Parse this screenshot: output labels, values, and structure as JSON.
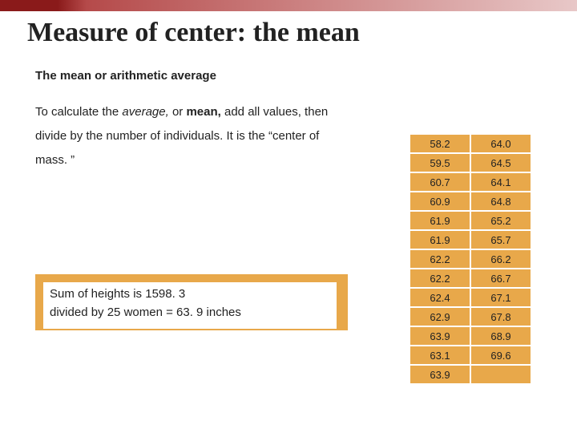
{
  "title_pre": "Measure of center: the ",
  "title_bold": "mean",
  "subtitle": "The mean or arithmetic average",
  "body_part1": "To calculate the ",
  "body_ital": "average,",
  "body_part2": " or ",
  "body_bold": "mean,",
  "body_part3": " add all values, then divide by the number of individuals. It is the “center of mass. ”",
  "callout_line1": "Sum of heights is 1598. 3",
  "callout_line2": "divided by 25 women = 63. 9 inches",
  "table": {
    "col1": [
      "58.2",
      "59.5",
      "60.7",
      "60.9",
      "61.9",
      "61.9",
      "62.2",
      "62.2",
      "62.4",
      "62.9",
      "63.9",
      "63.1",
      "63.9"
    ],
    "col2": [
      "64.0",
      "64.5",
      "64.1",
      "64.8",
      "65.2",
      "65.7",
      "66.2",
      "66.7",
      "67.1",
      "67.8",
      "68.9",
      "69.6",
      ""
    ]
  },
  "colors": {
    "accent_bar_dark": "#8a1a1a",
    "accent_bar_light": "#e8c8c8",
    "table_bg": "#e8a84a",
    "callout_bg": "#e8a84a",
    "text": "#222222"
  }
}
